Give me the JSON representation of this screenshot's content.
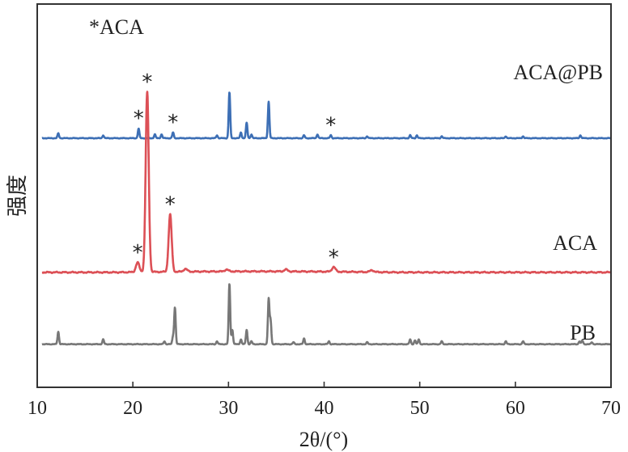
{
  "chart_data": {
    "type": "line",
    "xlabel": "2θ/(°)",
    "ylabel": "强度",
    "xlim": [
      10,
      70
    ],
    "x_ticks": [
      "10",
      "20",
      "30",
      "40",
      "50",
      "60",
      "70"
    ],
    "y_ticks_shown": false,
    "grid": false,
    "annotation": "*ACA",
    "series": [
      {
        "name": "ACA@PB",
        "color": "#3d6fb5",
        "baseline": 2.6,
        "peaks": [
          {
            "x": 12.2,
            "h": 0.05
          },
          {
            "x": 16.9,
            "h": 0.03
          },
          {
            "x": 20.6,
            "h": 0.1,
            "marked": true
          },
          {
            "x": 22.3,
            "h": 0.04
          },
          {
            "x": 23.0,
            "h": 0.04
          },
          {
            "x": 24.2,
            "h": 0.06,
            "marked": true
          },
          {
            "x": 28.8,
            "h": 0.03
          },
          {
            "x": 30.1,
            "h": 0.48
          },
          {
            "x": 31.3,
            "h": 0.06
          },
          {
            "x": 31.9,
            "h": 0.16
          },
          {
            "x": 32.4,
            "h": 0.04
          },
          {
            "x": 34.2,
            "h": 0.38
          },
          {
            "x": 37.9,
            "h": 0.03
          },
          {
            "x": 39.3,
            "h": 0.04
          },
          {
            "x": 40.7,
            "h": 0.03,
            "marked": true
          },
          {
            "x": 44.5,
            "h": 0.02
          },
          {
            "x": 49.0,
            "h": 0.03
          },
          {
            "x": 49.7,
            "h": 0.03
          },
          {
            "x": 52.3,
            "h": 0.02
          },
          {
            "x": 59.0,
            "h": 0.02
          },
          {
            "x": 60.8,
            "h": 0.02
          },
          {
            "x": 66.8,
            "h": 0.03
          }
        ]
      },
      {
        "name": "ACA",
        "color": "#dc5056",
        "baseline": 1.2,
        "peaks": [
          {
            "x": 20.5,
            "h": 0.1,
            "marked": true
          },
          {
            "x": 21.5,
            "h": 1.88,
            "marked": true
          },
          {
            "x": 23.9,
            "h": 0.6,
            "marked": true
          },
          {
            "x": 25.5,
            "h": 0.03
          },
          {
            "x": 29.8,
            "h": 0.02
          },
          {
            "x": 36.0,
            "h": 0.02
          },
          {
            "x": 41.0,
            "h": 0.05,
            "marked": true
          },
          {
            "x": 45.0,
            "h": 0.02
          }
        ]
      },
      {
        "name": "PB",
        "color": "#777777",
        "baseline": 0.45,
        "peaks": [
          {
            "x": 12.2,
            "h": 0.13
          },
          {
            "x": 16.9,
            "h": 0.05
          },
          {
            "x": 23.3,
            "h": 0.03
          },
          {
            "x": 24.2,
            "h": 0.08
          },
          {
            "x": 24.4,
            "h": 0.38
          },
          {
            "x": 28.8,
            "h": 0.03
          },
          {
            "x": 30.1,
            "h": 0.63
          },
          {
            "x": 30.4,
            "h": 0.15
          },
          {
            "x": 31.3,
            "h": 0.05
          },
          {
            "x": 31.9,
            "h": 0.15
          },
          {
            "x": 32.4,
            "h": 0.03
          },
          {
            "x": 34.2,
            "h": 0.47
          },
          {
            "x": 34.4,
            "h": 0.25
          },
          {
            "x": 36.8,
            "h": 0.02
          },
          {
            "x": 37.9,
            "h": 0.06
          },
          {
            "x": 40.5,
            "h": 0.03
          },
          {
            "x": 44.5,
            "h": 0.02
          },
          {
            "x": 49.0,
            "h": 0.05
          },
          {
            "x": 49.5,
            "h": 0.04
          },
          {
            "x": 49.9,
            "h": 0.05
          },
          {
            "x": 52.3,
            "h": 0.03
          },
          {
            "x": 59.0,
            "h": 0.03
          },
          {
            "x": 60.8,
            "h": 0.03
          },
          {
            "x": 66.7,
            "h": 0.03
          },
          {
            "x": 67.0,
            "h": 0.04
          },
          {
            "x": 68.0,
            "h": 0.02
          }
        ]
      }
    ]
  }
}
